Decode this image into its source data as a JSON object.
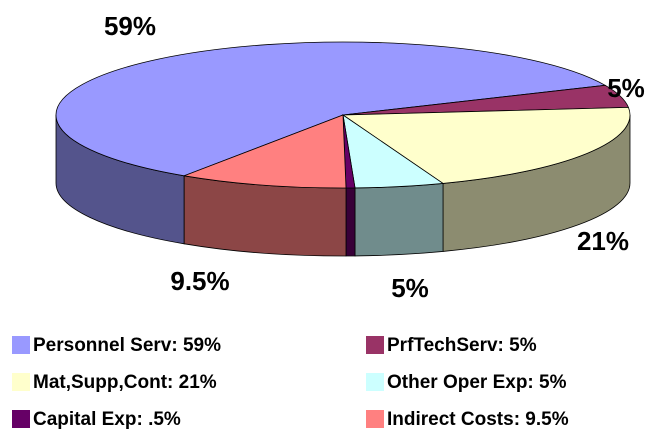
{
  "chart_data": {
    "type": "pie3d",
    "categories": [
      "Personnel Serv",
      "PrfTechServ",
      "Mat,Supp,Cont",
      "Other Oper Exp",
      "Capital Exp",
      "Indirect Costs"
    ],
    "legend_labels": [
      "Personnel Serv: 59%",
      "PrfTechServ: 5%",
      "Mat,Supp,Cont: 21%",
      "Other Oper Exp: 5%",
      "Capital Exp: .5%",
      "Indirect Costs: 9.5%"
    ],
    "values": [
      59,
      5,
      21,
      5,
      0.5,
      9.5
    ],
    "value_labels": [
      "59%",
      "5%",
      "21%",
      "5%",
      null,
      "9.5%"
    ],
    "colors": [
      "#9999ff",
      "#993366",
      "#ffffcc",
      "#ccffff",
      "#660066",
      "#ff8080"
    ],
    "legend": "bottom"
  }
}
